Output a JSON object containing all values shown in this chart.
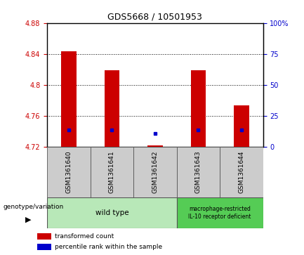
{
  "title": "GDS5668 / 10501953",
  "samples": [
    "GSM1361640",
    "GSM1361641",
    "GSM1361642",
    "GSM1361643",
    "GSM1361644"
  ],
  "bar_bottom": 4.72,
  "transformed_counts": [
    4.843,
    4.819,
    4.722,
    4.819,
    4.773
  ],
  "blue_dot_y": [
    4.742,
    4.742,
    4.737,
    4.742,
    4.742
  ],
  "ylim": [
    4.72,
    4.88
  ],
  "y_ticks_left": [
    4.72,
    4.76,
    4.8,
    4.84,
    4.88
  ],
  "y_ticks_right": [
    0,
    25,
    50,
    75,
    100
  ],
  "right_ylim": [
    0,
    100
  ],
  "bar_color": "#cc0000",
  "dot_color": "#0000cc",
  "bar_width": 0.35,
  "genotype_groups": [
    {
      "label": "wild type",
      "n_cols": 3,
      "color": "#b8e8b8"
    },
    {
      "label": "macrophage-restricted\nIL-10 receptor deficient",
      "n_cols": 2,
      "color": "#55cc55"
    }
  ],
  "legend_items": [
    {
      "color": "#cc0000",
      "label": "transformed count"
    },
    {
      "color": "#0000cc",
      "label": "percentile rank within the sample"
    }
  ],
  "sample_box_color": "#cccccc",
  "left_tick_color": "#cc0000",
  "right_tick_color": "#0000cc",
  "spine_color": "#000000",
  "grid_linestyle": "dotted",
  "grid_color": "#000000",
  "grid_linewidth": 0.7,
  "title_fontsize": 9,
  "tick_fontsize": 7,
  "label_fontsize": 6.5
}
